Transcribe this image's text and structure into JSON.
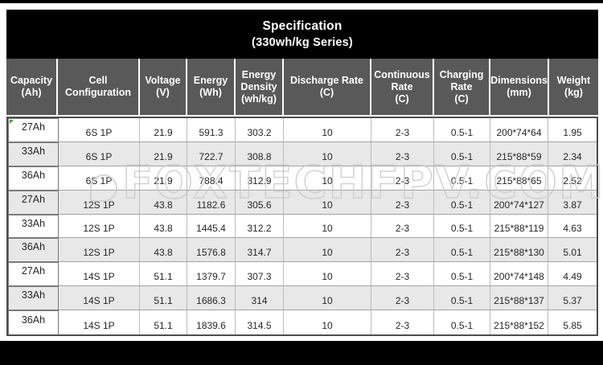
{
  "title": {
    "line1": "Specification",
    "line2": "(330wh/kg Series)"
  },
  "watermark": {
    "text": "FOXTECHFPV.COM",
    "logo": "bird-swirl-icon"
  },
  "colors": {
    "banner_bg": "#000000",
    "header_bg": "#595959",
    "header_text": "#ffffff",
    "row_alt_bg": "#e8e8e8",
    "body_text": "#262626",
    "table_outer_border": "#4d4d4d",
    "watermark_stroke": "#cbcbcb",
    "note_marker": "#3a9e3a"
  },
  "table": {
    "columns": [
      {
        "label": "Capacity",
        "unit": "(Ah)"
      },
      {
        "label": "Cell Configuration",
        "unit": ""
      },
      {
        "label": "Voltage",
        "unit": "(V)"
      },
      {
        "label": "Energy",
        "unit": "(Wh)"
      },
      {
        "label": "Energy Density",
        "unit": "(wh/kg)"
      },
      {
        "label": "Discharge Rate",
        "unit": "(C)"
      },
      {
        "label": "Continuous Rate",
        "unit": "(C)"
      },
      {
        "label": "Charging Rate",
        "unit": "(C)"
      },
      {
        "label": "Dimensions",
        "unit": "(mm)"
      },
      {
        "label": "Weight",
        "unit": "(kg)"
      }
    ],
    "rows": [
      [
        "27Ah",
        "6S 1P",
        "21.9",
        "591.3",
        "303.2",
        "10",
        "2-3",
        "0.5-1",
        "200*74*64",
        "1.95"
      ],
      [
        "33Ah",
        "6S 1P",
        "21.9",
        "722.7",
        "308.8",
        "10",
        "2-3",
        "0.5-1",
        "215*88*59",
        "2.34"
      ],
      [
        "36Ah",
        "6S 1P",
        "21.9",
        "788.4",
        "312.9",
        "10",
        "2-3",
        "0.5-1",
        "215*88*65",
        "2.52"
      ],
      [
        "27Ah",
        "12S 1P",
        "43.8",
        "1182.6",
        "305.6",
        "10",
        "2-3",
        "0.5-1",
        "200*74*127",
        "3.87"
      ],
      [
        "33Ah",
        "12S 1P",
        "43.8",
        "1445.4",
        "312.2",
        "10",
        "2-3",
        "0.5-1",
        "215*88*119",
        "4.63"
      ],
      [
        "36Ah",
        "12S 1P",
        "43.8",
        "1576.8",
        "314.7",
        "10",
        "2-3",
        "0.5-1",
        "215*88*130",
        "5.01"
      ],
      [
        "27Ah",
        "14S 1P",
        "51.1",
        "1379.7",
        "307.3",
        "10",
        "2-3",
        "0.5-1",
        "200*74*148",
        "4.49"
      ],
      [
        "33Ah",
        "14S 1P",
        "51.1",
        "1686.3",
        "314",
        "10",
        "2-3",
        "0.5-1",
        "215*88*137",
        "5.37"
      ],
      [
        "36Ah",
        "14S 1P",
        "51.1",
        "1839.6",
        "314.5",
        "10",
        "2-3",
        "0.5-1",
        "215*88*152",
        "5.85"
      ]
    ]
  }
}
